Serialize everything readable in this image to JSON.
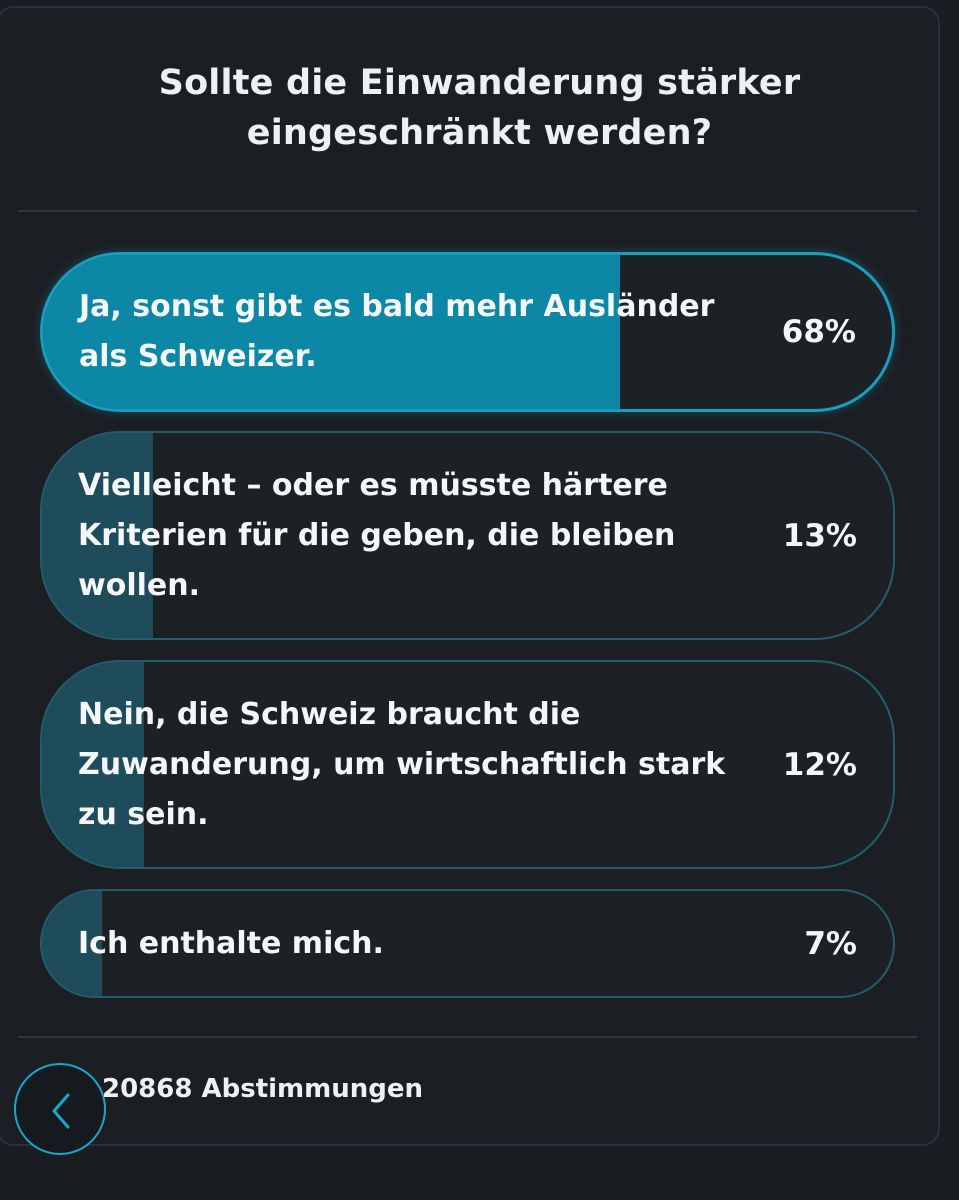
{
  "poll": {
    "question_line1": "Sollte die Einwanderung stärker",
    "question_line2": "eingeschränkt werden?",
    "options": [
      {
        "label": "Ja, sonst gibt es bald mehr Ausländer\nals Schweizer.",
        "percent_text": "68%",
        "percent": 68,
        "selected": true
      },
      {
        "label": "Vielleicht – oder es müsste härtere\nKriterien für die geben, die bleiben\nwollen.",
        "percent_text": "13%",
        "percent": 13,
        "selected": false
      },
      {
        "label": "Nein, die Schweiz braucht die\nZuwanderung, um wirtschaftlich stark\nzu sein.",
        "percent_text": "12%",
        "percent": 12,
        "selected": false
      },
      {
        "label": "Ich enthalte mich.",
        "percent_text": "7%",
        "percent": 7,
        "selected": false
      }
    ],
    "votes_text": "20868 Abstimmungen"
  },
  "icons": {
    "back": "chevron-left-icon"
  },
  "colors": {
    "background": "#1a1e22",
    "accent": "#1a9ec0",
    "selected_fill": "#0c87a6",
    "unselected_fill": "#1f4c5a"
  }
}
